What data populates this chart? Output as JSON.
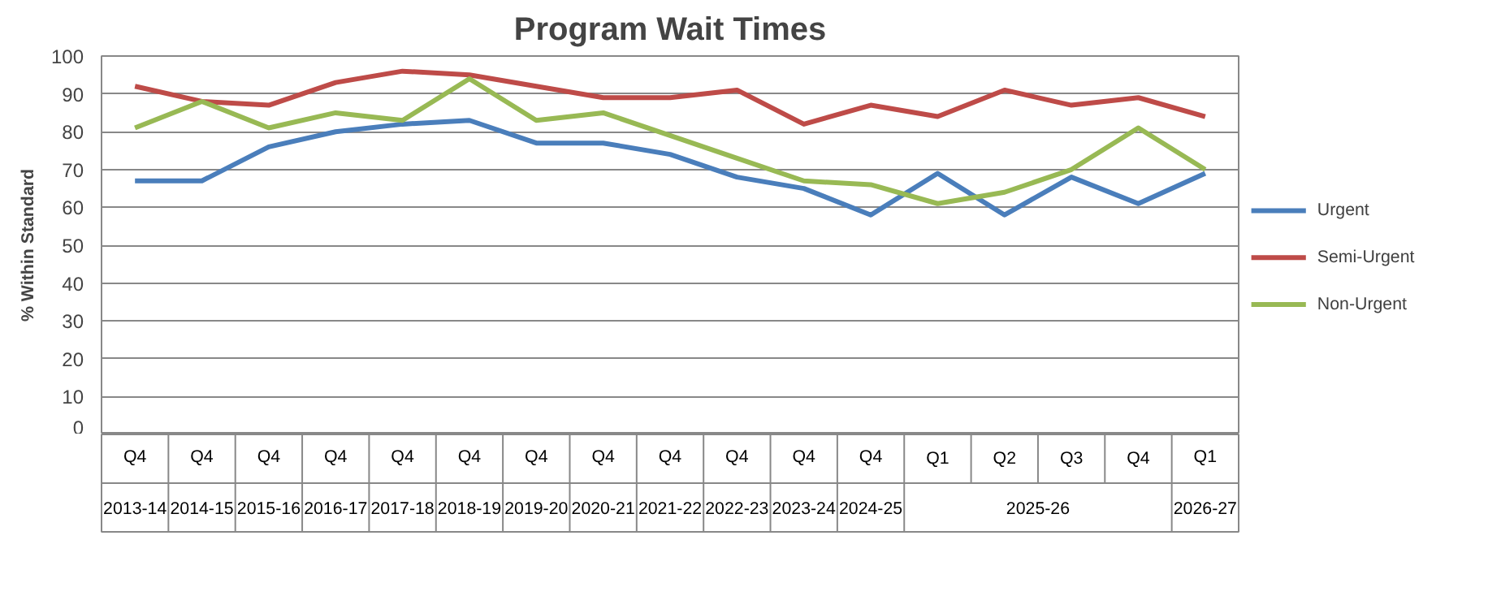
{
  "chart_data": {
    "type": "line",
    "title": "Program Wait Times",
    "ylabel": "% Within Standard",
    "categories": [
      "Q4 2013-14",
      "Q4 2014-15",
      "Q4 2015-16",
      "Q4 2016-17",
      "Q4 2017-18",
      "Q4 2018-19",
      "Q4 2019-20",
      "Q4 2020-21",
      "Q4 2021-22",
      "Q4 2022-23",
      "Q4 2023-24",
      "Q4 2024-25",
      "Q1",
      "Q2",
      "Q3",
      "Q4",
      "Q1 2026-27"
    ],
    "annotations": [
      "2025-26"
    ],
    "series": [
      {
        "name": "Urgent",
        "color": "#4a7ebb",
        "values": [
          67,
          67,
          76,
          80,
          82,
          83,
          77,
          77,
          74,
          68,
          65,
          58,
          69,
          58,
          68,
          61,
          69
        ]
      },
      {
        "name": "Semi-Urgent",
        "color": "#be4b48",
        "values": [
          92,
          88,
          87,
          93,
          96,
          95,
          92,
          89,
          89,
          91,
          82,
          87,
          84,
          91,
          87,
          89,
          84
        ]
      },
      {
        "name": "Non-Urgent",
        "color": "#98b954",
        "values": [
          81,
          88,
          81,
          85,
          83,
          94,
          83,
          85,
          79,
          73,
          67,
          66,
          61,
          64,
          70,
          81,
          70
        ]
      }
    ],
    "ylim": [
      0,
      100
    ],
    "yticks": [
      0,
      10,
      20,
      30,
      40,
      50,
      60,
      70,
      80,
      90,
      100
    ],
    "grid": "y",
    "legend": "right"
  }
}
